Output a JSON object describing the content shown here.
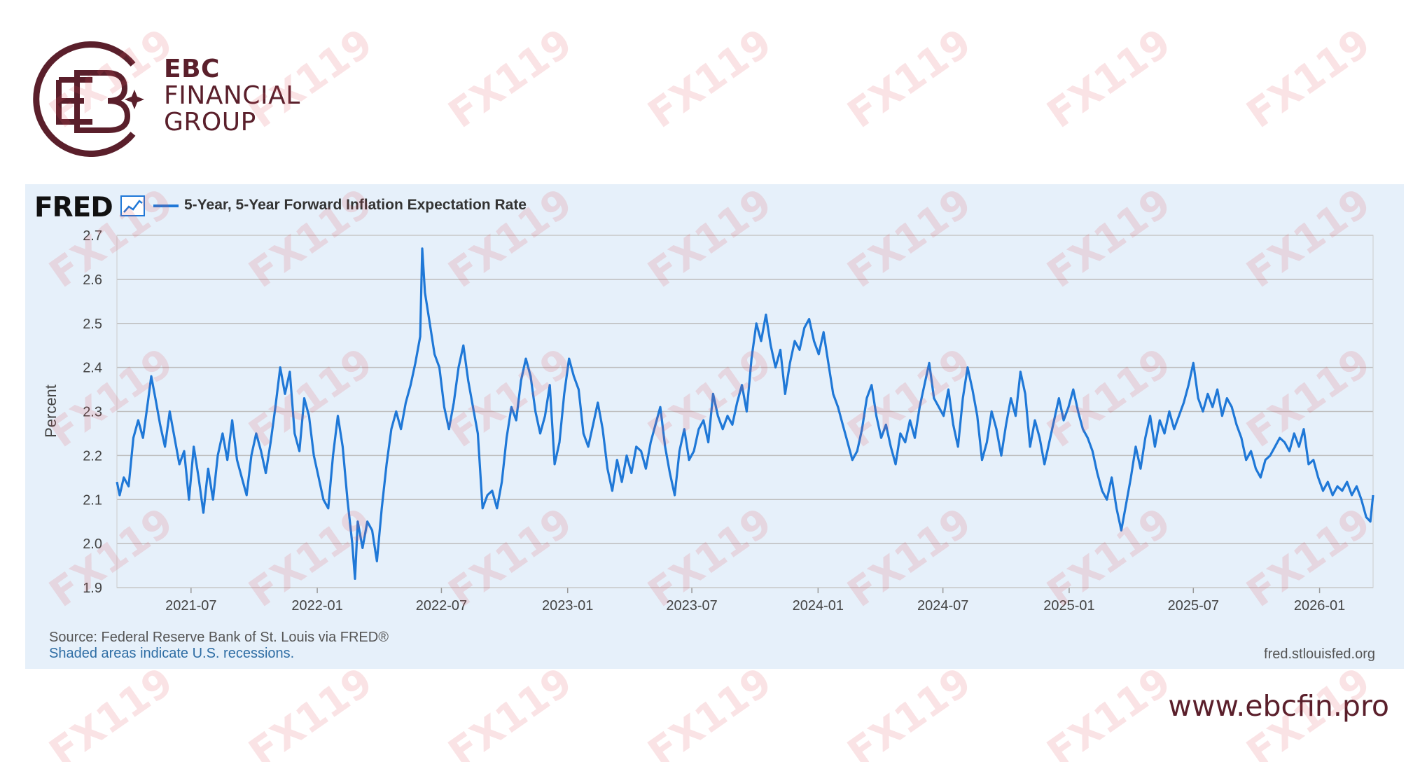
{
  "brand": {
    "line1": "EBC",
    "line2": "FINANCIAL",
    "line3": "GROUP",
    "url": "www.ebcfin.pro",
    "color": "#5a1f2b"
  },
  "fred": {
    "logo_text": "FRED",
    "source": "Source: Federal Reserve Bank of St. Louis via FRED®",
    "recession_note": "Shaded areas indicate U.S. recessions.",
    "site": "fred.stlouisfed.org"
  },
  "watermark": "FX119",
  "chart_data": {
    "type": "line",
    "series": [
      {
        "name": "5-Year, 5-Year Forward Inflation Expectation Rate",
        "color": "#1f78d7",
        "points": [
          [
            "2021-03-15",
            2.14
          ],
          [
            "2021-03-19",
            2.11
          ],
          [
            "2021-03-25",
            2.15
          ],
          [
            "2021-04-01",
            2.13
          ],
          [
            "2021-04-08",
            2.24
          ],
          [
            "2021-04-15",
            2.28
          ],
          [
            "2021-04-22",
            2.24
          ],
          [
            "2021-04-29",
            2.32
          ],
          [
            "2021-05-04",
            2.38
          ],
          [
            "2021-05-10",
            2.33
          ],
          [
            "2021-05-17",
            2.27
          ],
          [
            "2021-05-24",
            2.22
          ],
          [
            "2021-05-31",
            2.3
          ],
          [
            "2021-06-07",
            2.24
          ],
          [
            "2021-06-14",
            2.18
          ],
          [
            "2021-06-21",
            2.21
          ],
          [
            "2021-06-28",
            2.1
          ],
          [
            "2021-07-05",
            2.22
          ],
          [
            "2021-07-12",
            2.15
          ],
          [
            "2021-07-19",
            2.07
          ],
          [
            "2021-07-26",
            2.17
          ],
          [
            "2021-08-02",
            2.1
          ],
          [
            "2021-08-09",
            2.2
          ],
          [
            "2021-08-16",
            2.25
          ],
          [
            "2021-08-23",
            2.19
          ],
          [
            "2021-08-30",
            2.28
          ],
          [
            "2021-09-06",
            2.19
          ],
          [
            "2021-09-13",
            2.15
          ],
          [
            "2021-09-20",
            2.11
          ],
          [
            "2021-09-27",
            2.2
          ],
          [
            "2021-10-04",
            2.25
          ],
          [
            "2021-10-11",
            2.21
          ],
          [
            "2021-10-18",
            2.16
          ],
          [
            "2021-10-25",
            2.23
          ],
          [
            "2021-11-01",
            2.31
          ],
          [
            "2021-11-08",
            2.4
          ],
          [
            "2021-11-15",
            2.34
          ],
          [
            "2021-11-22",
            2.39
          ],
          [
            "2021-11-29",
            2.25
          ],
          [
            "2021-12-06",
            2.21
          ],
          [
            "2021-12-13",
            2.33
          ],
          [
            "2021-12-20",
            2.29
          ],
          [
            "2021-12-27",
            2.2
          ],
          [
            "2022-01-03",
            2.15
          ],
          [
            "2022-01-10",
            2.1
          ],
          [
            "2022-01-17",
            2.08
          ],
          [
            "2022-01-24",
            2.2
          ],
          [
            "2022-01-31",
            2.29
          ],
          [
            "2022-02-07",
            2.22
          ],
          [
            "2022-02-14",
            2.1
          ],
          [
            "2022-02-21",
            2.0
          ],
          [
            "2022-02-25",
            1.92
          ],
          [
            "2022-03-01",
            2.05
          ],
          [
            "2022-03-08",
            1.99
          ],
          [
            "2022-03-15",
            2.05
          ],
          [
            "2022-03-22",
            2.03
          ],
          [
            "2022-03-29",
            1.96
          ],
          [
            "2022-04-05",
            2.08
          ],
          [
            "2022-04-12",
            2.18
          ],
          [
            "2022-04-19",
            2.26
          ],
          [
            "2022-04-26",
            2.3
          ],
          [
            "2022-05-03",
            2.26
          ],
          [
            "2022-05-10",
            2.32
          ],
          [
            "2022-05-17",
            2.36
          ],
          [
            "2022-05-24",
            2.41
          ],
          [
            "2022-05-31",
            2.47
          ],
          [
            "2022-06-03",
            2.67
          ],
          [
            "2022-06-07",
            2.57
          ],
          [
            "2022-06-14",
            2.5
          ],
          [
            "2022-06-21",
            2.43
          ],
          [
            "2022-06-28",
            2.4
          ],
          [
            "2022-07-05",
            2.31
          ],
          [
            "2022-07-12",
            2.26
          ],
          [
            "2022-07-19",
            2.32
          ],
          [
            "2022-07-26",
            2.4
          ],
          [
            "2022-08-02",
            2.45
          ],
          [
            "2022-08-09",
            2.37
          ],
          [
            "2022-08-16",
            2.31
          ],
          [
            "2022-08-23",
            2.25
          ],
          [
            "2022-08-30",
            2.08
          ],
          [
            "2022-09-06",
            2.11
          ],
          [
            "2022-09-13",
            2.12
          ],
          [
            "2022-09-20",
            2.08
          ],
          [
            "2022-09-27",
            2.14
          ],
          [
            "2022-10-04",
            2.24
          ],
          [
            "2022-10-11",
            2.31
          ],
          [
            "2022-10-18",
            2.28
          ],
          [
            "2022-10-25",
            2.37
          ],
          [
            "2022-11-01",
            2.42
          ],
          [
            "2022-11-08",
            2.38
          ],
          [
            "2022-11-15",
            2.3
          ],
          [
            "2022-11-22",
            2.25
          ],
          [
            "2022-11-29",
            2.29
          ],
          [
            "2022-12-06",
            2.36
          ],
          [
            "2022-12-13",
            2.18
          ],
          [
            "2022-12-20",
            2.23
          ],
          [
            "2022-12-27",
            2.34
          ],
          [
            "2023-01-03",
            2.42
          ],
          [
            "2023-01-10",
            2.38
          ],
          [
            "2023-01-17",
            2.35
          ],
          [
            "2023-01-24",
            2.25
          ],
          [
            "2023-01-31",
            2.22
          ],
          [
            "2023-02-07",
            2.27
          ],
          [
            "2023-02-14",
            2.32
          ],
          [
            "2023-02-21",
            2.26
          ],
          [
            "2023-02-28",
            2.17
          ],
          [
            "2023-03-07",
            2.12
          ],
          [
            "2023-03-14",
            2.19
          ],
          [
            "2023-03-21",
            2.14
          ],
          [
            "2023-03-28",
            2.2
          ],
          [
            "2023-04-04",
            2.16
          ],
          [
            "2023-04-11",
            2.22
          ],
          [
            "2023-04-18",
            2.21
          ],
          [
            "2023-04-25",
            2.17
          ],
          [
            "2023-05-02",
            2.23
          ],
          [
            "2023-05-09",
            2.27
          ],
          [
            "2023-05-16",
            2.31
          ],
          [
            "2023-05-23",
            2.22
          ],
          [
            "2023-05-30",
            2.16
          ],
          [
            "2023-06-06",
            2.11
          ],
          [
            "2023-06-13",
            2.21
          ],
          [
            "2023-06-20",
            2.26
          ],
          [
            "2023-06-27",
            2.19
          ],
          [
            "2023-07-04",
            2.21
          ],
          [
            "2023-07-11",
            2.26
          ],
          [
            "2023-07-18",
            2.28
          ],
          [
            "2023-07-25",
            2.23
          ],
          [
            "2023-08-01",
            2.34
          ],
          [
            "2023-08-08",
            2.29
          ],
          [
            "2023-08-15",
            2.26
          ],
          [
            "2023-08-22",
            2.29
          ],
          [
            "2023-08-29",
            2.27
          ],
          [
            "2023-09-05",
            2.32
          ],
          [
            "2023-09-12",
            2.36
          ],
          [
            "2023-09-19",
            2.3
          ],
          [
            "2023-09-26",
            2.42
          ],
          [
            "2023-10-03",
            2.5
          ],
          [
            "2023-10-10",
            2.46
          ],
          [
            "2023-10-17",
            2.52
          ],
          [
            "2023-10-24",
            2.45
          ],
          [
            "2023-10-31",
            2.4
          ],
          [
            "2023-11-07",
            2.44
          ],
          [
            "2023-11-14",
            2.34
          ],
          [
            "2023-11-21",
            2.41
          ],
          [
            "2023-11-28",
            2.46
          ],
          [
            "2023-12-05",
            2.44
          ],
          [
            "2023-12-12",
            2.49
          ],
          [
            "2023-12-19",
            2.51
          ],
          [
            "2023-12-26",
            2.46
          ],
          [
            "2024-01-02",
            2.43
          ],
          [
            "2024-01-09",
            2.48
          ],
          [
            "2024-01-16",
            2.41
          ],
          [
            "2024-01-23",
            2.34
          ],
          [
            "2024-01-30",
            2.31
          ],
          [
            "2024-02-06",
            2.27
          ],
          [
            "2024-02-13",
            2.23
          ],
          [
            "2024-02-20",
            2.19
          ],
          [
            "2024-02-27",
            2.21
          ],
          [
            "2024-03-05",
            2.26
          ],
          [
            "2024-03-12",
            2.33
          ],
          [
            "2024-03-19",
            2.36
          ],
          [
            "2024-03-26",
            2.29
          ],
          [
            "2024-04-02",
            2.24
          ],
          [
            "2024-04-09",
            2.27
          ],
          [
            "2024-04-16",
            2.22
          ],
          [
            "2024-04-23",
            2.18
          ],
          [
            "2024-04-30",
            2.25
          ],
          [
            "2024-05-07",
            2.23
          ],
          [
            "2024-05-14",
            2.28
          ],
          [
            "2024-05-21",
            2.24
          ],
          [
            "2024-05-28",
            2.31
          ],
          [
            "2024-06-04",
            2.36
          ],
          [
            "2024-06-11",
            2.41
          ],
          [
            "2024-06-18",
            2.33
          ],
          [
            "2024-06-25",
            2.31
          ],
          [
            "2024-07-02",
            2.29
          ],
          [
            "2024-07-09",
            2.35
          ],
          [
            "2024-07-16",
            2.27
          ],
          [
            "2024-07-23",
            2.22
          ],
          [
            "2024-07-30",
            2.33
          ],
          [
            "2024-08-06",
            2.4
          ],
          [
            "2024-08-13",
            2.35
          ],
          [
            "2024-08-20",
            2.29
          ],
          [
            "2024-08-27",
            2.19
          ],
          [
            "2024-09-03",
            2.23
          ],
          [
            "2024-09-10",
            2.3
          ],
          [
            "2024-09-17",
            2.26
          ],
          [
            "2024-09-24",
            2.2
          ],
          [
            "2024-10-01",
            2.27
          ],
          [
            "2024-10-08",
            2.33
          ],
          [
            "2024-10-15",
            2.29
          ],
          [
            "2024-10-22",
            2.39
          ],
          [
            "2024-10-29",
            2.34
          ],
          [
            "2024-11-05",
            2.22
          ],
          [
            "2024-11-12",
            2.28
          ],
          [
            "2024-11-19",
            2.24
          ],
          [
            "2024-11-26",
            2.18
          ],
          [
            "2024-12-03",
            2.23
          ],
          [
            "2024-12-10",
            2.28
          ],
          [
            "2024-12-17",
            2.33
          ],
          [
            "2024-12-24",
            2.28
          ],
          [
            "2024-12-31",
            2.31
          ],
          [
            "2025-01-07",
            2.35
          ],
          [
            "2025-01-14",
            2.3
          ],
          [
            "2025-01-21",
            2.26
          ],
          [
            "2025-01-28",
            2.24
          ],
          [
            "2025-02-04",
            2.21
          ],
          [
            "2025-02-11",
            2.16
          ],
          [
            "2025-02-18",
            2.12
          ],
          [
            "2025-02-25",
            2.1
          ],
          [
            "2025-03-04",
            2.15
          ],
          [
            "2025-03-11",
            2.08
          ],
          [
            "2025-03-18",
            2.03
          ],
          [
            "2025-03-25",
            2.09
          ],
          [
            "2025-04-01",
            2.15
          ],
          [
            "2025-04-08",
            2.22
          ],
          [
            "2025-04-15",
            2.17
          ],
          [
            "2025-04-22",
            2.24
          ],
          [
            "2025-04-29",
            2.29
          ],
          [
            "2025-05-06",
            2.22
          ],
          [
            "2025-05-13",
            2.28
          ],
          [
            "2025-05-20",
            2.25
          ],
          [
            "2025-05-27",
            2.3
          ],
          [
            "2025-06-03",
            2.26
          ],
          [
            "2025-06-10",
            2.29
          ],
          [
            "2025-06-17",
            2.32
          ],
          [
            "2025-06-24",
            2.36
          ],
          [
            "2025-07-01",
            2.41
          ],
          [
            "2025-07-08",
            2.33
          ],
          [
            "2025-07-15",
            2.3
          ],
          [
            "2025-07-22",
            2.34
          ],
          [
            "2025-07-29",
            2.31
          ],
          [
            "2025-08-05",
            2.35
          ],
          [
            "2025-08-12",
            2.29
          ],
          [
            "2025-08-19",
            2.33
          ],
          [
            "2025-08-26",
            2.31
          ],
          [
            "2025-09-02",
            2.27
          ],
          [
            "2025-09-09",
            2.24
          ],
          [
            "2025-09-16",
            2.19
          ],
          [
            "2025-09-23",
            2.21
          ],
          [
            "2025-09-30",
            2.17
          ],
          [
            "2025-10-07",
            2.15
          ],
          [
            "2025-10-14",
            2.19
          ],
          [
            "2025-10-21",
            2.2
          ],
          [
            "2025-10-28",
            2.22
          ],
          [
            "2025-11-04",
            2.24
          ],
          [
            "2025-11-11",
            2.23
          ],
          [
            "2025-11-18",
            2.21
          ],
          [
            "2025-11-25",
            2.25
          ],
          [
            "2025-12-02",
            2.22
          ],
          [
            "2025-12-09",
            2.26
          ],
          [
            "2025-12-16",
            2.18
          ],
          [
            "2025-12-23",
            2.19
          ],
          [
            "2025-12-30",
            2.15
          ],
          [
            "2026-01-06",
            2.12
          ],
          [
            "2026-01-13",
            2.14
          ],
          [
            "2026-01-20",
            2.11
          ],
          [
            "2026-01-27",
            2.13
          ],
          [
            "2026-02-03",
            2.12
          ],
          [
            "2026-02-10",
            2.14
          ],
          [
            "2026-02-17",
            2.11
          ],
          [
            "2026-02-24",
            2.13
          ],
          [
            "2026-03-03",
            2.1
          ],
          [
            "2026-03-10",
            2.06
          ],
          [
            "2026-03-16",
            2.05
          ],
          [
            "2026-03-20",
            2.11
          ]
        ]
      }
    ],
    "xlabel": "",
    "ylabel": "Percent",
    "ylim": [
      1.9,
      2.7
    ],
    "yticks": [
      "1.9",
      "2.0",
      "2.1",
      "2.2",
      "2.3",
      "2.4",
      "2.5",
      "2.6",
      "2.7"
    ],
    "xlim": [
      "2021-03-15",
      "2026-03-20"
    ],
    "xticks": [
      "2021-07",
      "2022-01",
      "2022-07",
      "2023-01",
      "2023-07",
      "2024-01",
      "2024-07",
      "2025-01",
      "2025-07",
      "2026-01"
    ],
    "grid": true,
    "legend_position": "top-left"
  }
}
